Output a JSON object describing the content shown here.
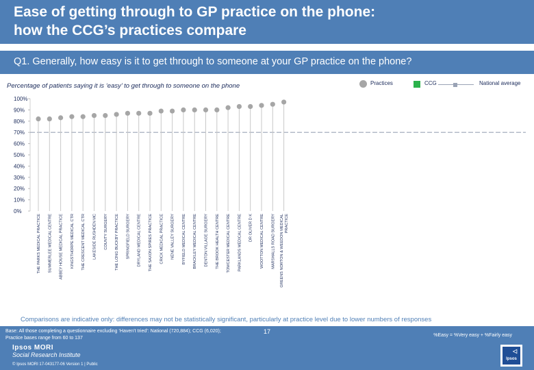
{
  "header": {
    "title_line1": "Ease of getting through to GP practice on the phone:",
    "title_line2": "how the CCG’s practices compare",
    "question": "Q1. Generally, how easy is it to get through to someone at your GP practice on the phone?"
  },
  "subtitle": "Percentage of patients saying it is ‘easy’ to get through to someone on the phone",
  "legend": {
    "practices": "Practices",
    "ccg": "CCG",
    "national": "National average"
  },
  "colors": {
    "header": "#4f7fb6",
    "practice_marker": "#a6a6a6",
    "national_line": "#9aa3b5",
    "ccg": "#2bb24c",
    "note": "#4f7fb6"
  },
  "chart_data": {
    "type": "scatter",
    "title": "Percentage of patients saying it is ‘easy’ to get through to someone on the phone",
    "ylim": [
      0,
      100
    ],
    "yticks": [
      "0%",
      "10%",
      "20%",
      "30%",
      "40%",
      "50%",
      "60%",
      "70%",
      "80%",
      "90%",
      "100%"
    ],
    "national_average": 70,
    "categories": [
      "THE PARKS MEDICAL PRACTICE",
      "SUMMERLEE MEDICAL CENTRE",
      "ABBEY HOUSE MEDICAL PRACTICE",
      "KINGSTHORPE MEDICAL CTR",
      "THE CRESCENT MEDICAL CTR",
      "LAKESIDE RUSHDEN MC",
      "COUNTY SURGERY",
      "THE LONG BUCKBY PRACTICE",
      "SPRINGFIELD SURGERY",
      "DRYLAND MEDICAL CENTRE",
      "THE SAXON SPIRES PRACTICE",
      "CRICK MEDICAL PRACTICE",
      "NENE VALLEY SURGERY",
      "BYFIELD MEDICAL CENTRE",
      "BRACKLEY MEDICAL CENTRE",
      "DENTON VILLAGE SURGERY",
      "THE BROOK HEALTH CENTRE",
      "TOWCESTER MEDICAL CENTRE",
      "PARKLANDS MEDICAL CENTRE",
      "DR OLIVER D K",
      "WOOTTON MEDICAL CENTRE",
      "MARSHALLS ROAD SURGERY",
      "GREENS NORTON & WEEDON MEDICAL PRACTICE"
    ],
    "values": [
      82,
      82,
      83,
      84,
      84,
      85,
      85,
      86,
      87,
      87,
      87,
      89,
      89,
      90,
      90,
      90,
      90,
      92,
      93,
      93,
      94,
      95,
      97
    ],
    "xlabel": "",
    "ylabel": ""
  },
  "note": "Comparisons are indicative only: differences may not be statistically significant, particularly at practice level due to lower numbers of responses",
  "footer": {
    "base_line1": "Base: All those completing a questionnaire excluding ‘Haven’t tried’: National (720,884); CCG (6,020);",
    "base_line2": "Practice bases range from 60 to 137",
    "easy_def": "%Easy = %Very easy + %Fairly easy",
    "page_number": "17",
    "logo_line1": "Ipsos MORI",
    "logo_line2": "Social Research Institute",
    "copyright": "© Ipsos MORI     17-043177-06 Version 1 | Public",
    "badge_text": "Ipsos"
  }
}
